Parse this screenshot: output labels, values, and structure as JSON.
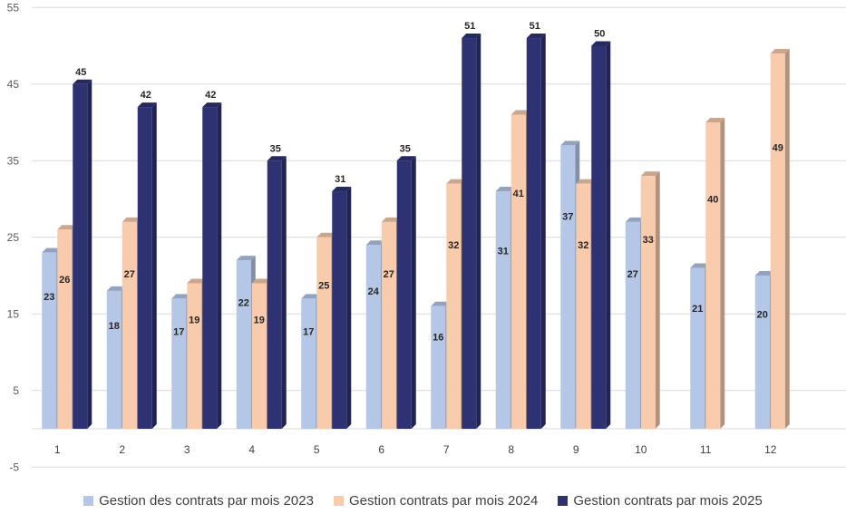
{
  "chart_data": {
    "type": "bar",
    "categories": [
      "1",
      "2",
      "3",
      "4",
      "5",
      "6",
      "7",
      "8",
      "9",
      "10",
      "11",
      "12"
    ],
    "series": [
      {
        "name": "Gestion des contrats par mois 2023",
        "color": "#b4c7e7",
        "values": [
          23,
          18,
          17,
          22,
          17,
          24,
          16,
          31,
          37,
          27,
          21,
          20
        ]
      },
      {
        "name": "Gestion contrats par mois 2024",
        "color": "#f8cbad",
        "values": [
          26,
          27,
          19,
          19,
          25,
          27,
          32,
          41,
          32,
          33,
          40,
          49
        ]
      },
      {
        "name": "Gestion contrats par mois 2025",
        "color": "#2e3273",
        "values": [
          45,
          42,
          42,
          35,
          31,
          35,
          51,
          51,
          50,
          null,
          null,
          null
        ]
      }
    ],
    "yticks": [
      "55",
      "45",
      "35",
      "25",
      "15",
      "5",
      "-5"
    ],
    "ylim": [
      -5,
      55
    ],
    "grid": true,
    "legend": "bottom"
  }
}
